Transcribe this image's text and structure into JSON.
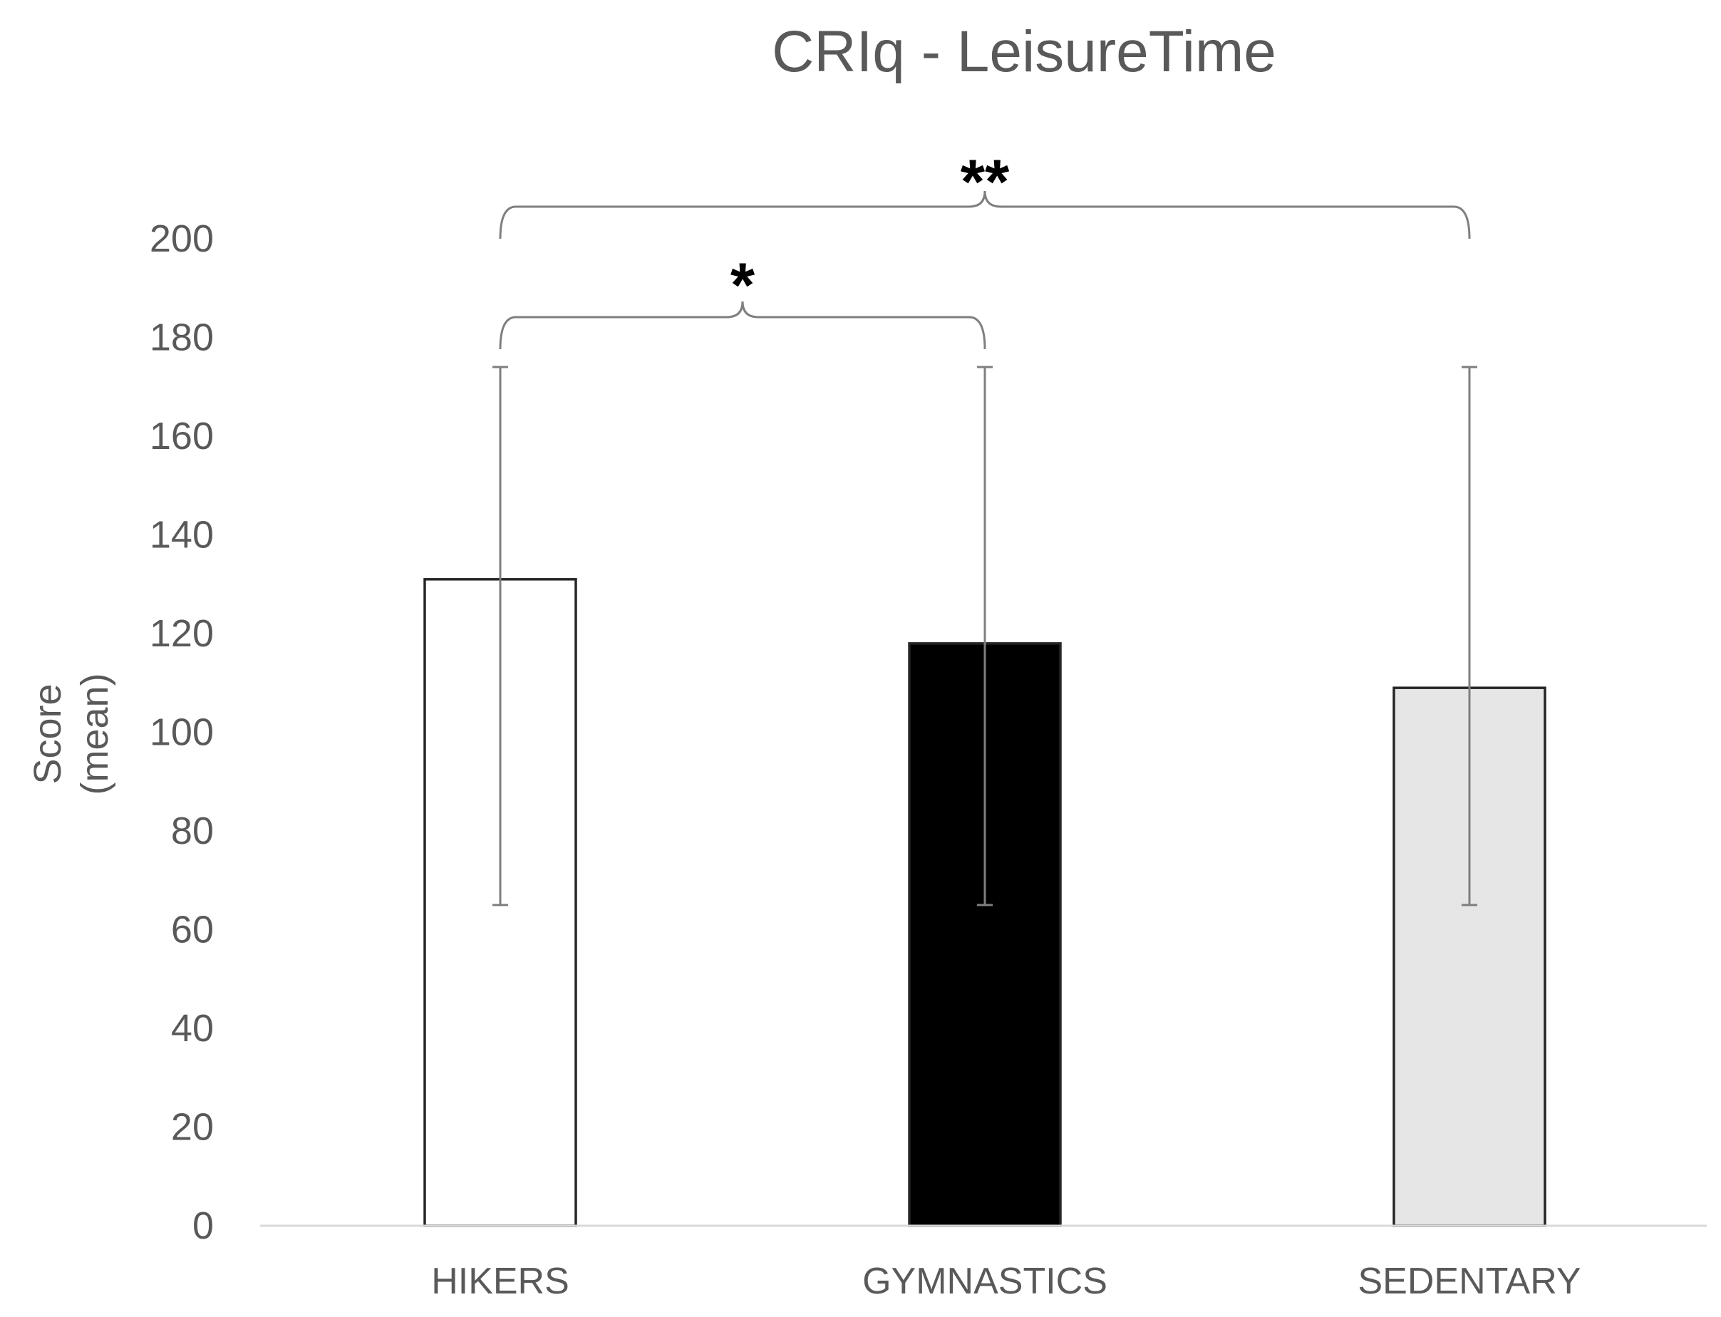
{
  "chart_data": {
    "type": "bar",
    "title": "CRIq - LeisureTime",
    "xlabel": "",
    "ylabel": "Score\n(mean)",
    "categories": [
      "HIKERS",
      "GYMNASTICS",
      "SEDENTARY"
    ],
    "values": [
      131,
      118,
      109
    ],
    "error_bars": [
      {
        "low": 65,
        "high": 174
      },
      {
        "low": 65,
        "high": 174
      },
      {
        "low": 65,
        "high": 174
      }
    ],
    "bar_colors": [
      "#ffffff",
      "#000000",
      "#e6e6e6"
    ],
    "ylim": [
      0,
      200
    ],
    "yticks": [
      0,
      20,
      40,
      60,
      80,
      100,
      120,
      140,
      160,
      180,
      200
    ],
    "grid": false,
    "legend": "none",
    "significance": [
      {
        "from": 0,
        "to": 1,
        "label": "*"
      },
      {
        "from": 0,
        "to": 2,
        "label": "**"
      }
    ],
    "colors": {
      "title": "#595959",
      "tick_text": "#595959",
      "axis_line": "#d9d9d9",
      "bar_edge": "#262626",
      "error_bar": "#7f7f7f",
      "bracket": "#7f7f7f",
      "star": "#000000"
    }
  }
}
